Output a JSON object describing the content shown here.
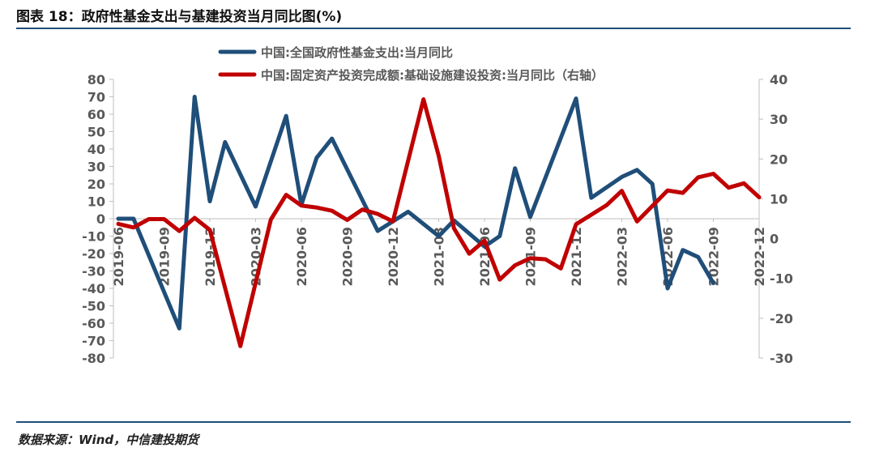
{
  "header": {
    "title": "图表 18：政府性基金支出与基建投资当月同比图(%)"
  },
  "footer": {
    "source": "数据来源：Wind，中信建投期货"
  },
  "colors": {
    "series1": "#1f4e79",
    "series2": "#c00000",
    "rule": "#1f4e79",
    "axis": "#bfbfbf"
  },
  "chart_data": {
    "type": "line",
    "title": "",
    "x_tick_labels": [
      "2019-06",
      "2019-09",
      "2019-12",
      "2020-03",
      "2020-06",
      "2020-09",
      "2020-12",
      "2021-03",
      "2021-06",
      "2021-09",
      "2021-12",
      "2022-03",
      "2022-06",
      "2022-09",
      "2022-12"
    ],
    "x": [
      "2019-06",
      "2019-07",
      "2019-08",
      "2019-09",
      "2019-10",
      "2019-11",
      "2019-12",
      "2020-01",
      "2020-02",
      "2020-03",
      "2020-04",
      "2020-05",
      "2020-06",
      "2020-07",
      "2020-08",
      "2020-09",
      "2020-10",
      "2020-11",
      "2020-12",
      "2021-01",
      "2021-02",
      "2021-03",
      "2021-04",
      "2021-05",
      "2021-06",
      "2021-07",
      "2021-08",
      "2021-09",
      "2021-10",
      "2021-11",
      "2021-12",
      "2022-01",
      "2022-02",
      "2022-03",
      "2022-04",
      "2022-05",
      "2022-06",
      "2022-07",
      "2022-08",
      "2022-09",
      "2022-10",
      "2022-11",
      "2022-12"
    ],
    "left_axis": {
      "ylim": [
        -80,
        80
      ],
      "ticks": [
        80,
        70,
        60,
        50,
        40,
        30,
        20,
        10,
        0,
        -10,
        -20,
        -30,
        -40,
        -50,
        -60,
        -70,
        -80
      ]
    },
    "right_axis": {
      "ylim": [
        -30,
        40
      ],
      "ticks": [
        40,
        30,
        20,
        10,
        0,
        -10,
        -20,
        -30
      ]
    },
    "legend_position": "top",
    "grid": false,
    "series": [
      {
        "name": "中国:全国政府性基金支出:当月同比",
        "axis": "left",
        "values": [
          0,
          0,
          null,
          null,
          -63,
          70,
          10,
          44,
          null,
          7,
          null,
          59,
          8,
          35,
          46,
          null,
          null,
          -7,
          null,
          4,
          null,
          -10,
          -1,
          null,
          -16,
          -10,
          29,
          1,
          null,
          null,
          69,
          12,
          null,
          24,
          28,
          20,
          -40,
          -18,
          -22,
          -37,
          null,
          null,
          null
        ]
      },
      {
        "name": "中国:固定资产投资完成额:基础设施建设投资:当月同比（右轴）",
        "axis": "right",
        "values": [
          3.7,
          2.8,
          4.9,
          4.9,
          1.9,
          5.2,
          2.2,
          null,
          -27,
          null,
          4.8,
          11,
          8.3,
          7.8,
          7.0,
          4.7,
          7.3,
          6.2,
          4.3,
          null,
          35,
          20.8,
          2.6,
          -3.8,
          -0.5,
          -10.3,
          -6.7,
          -4.9,
          -5.2,
          -7.5,
          3.6,
          null,
          8.4,
          12,
          4.3,
          8.2,
          12.1,
          11.5,
          15.4,
          16.3,
          12.8,
          13.9,
          10.4
        ]
      }
    ]
  }
}
